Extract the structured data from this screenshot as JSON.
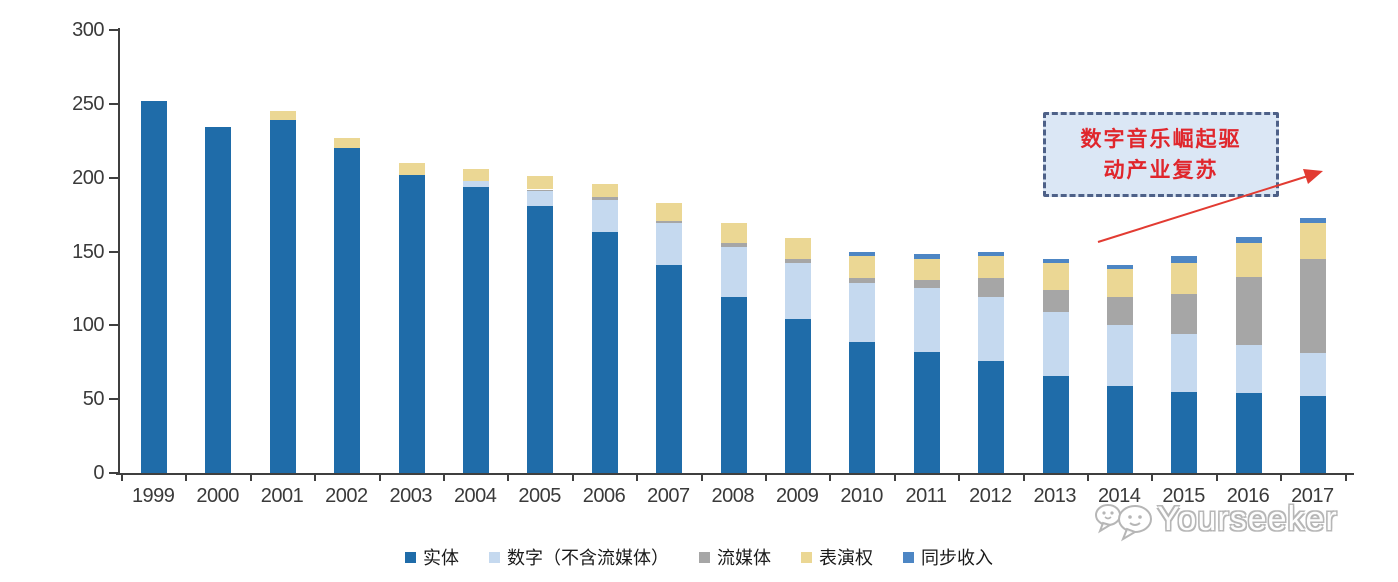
{
  "chart_data": {
    "type": "bar",
    "stacked": true,
    "title": "",
    "categories": [
      "1999",
      "2000",
      "2001",
      "2002",
      "2003",
      "2004",
      "2005",
      "2006",
      "2007",
      "2008",
      "2009",
      "2010",
      "2011",
      "2012",
      "2013",
      "2014",
      "2015",
      "2016",
      "2017"
    ],
    "series": [
      {
        "name": "实体",
        "color": "#1F6CA9",
        "values": [
          252,
          234,
          239,
          220,
          202,
          194,
          181,
          163,
          141,
          119,
          104,
          89,
          82,
          76,
          66,
          59,
          55,
          54,
          52
        ]
      },
      {
        "name": "数字（不含流媒体）",
        "color": "#C5D9EF",
        "values": [
          0,
          0,
          0,
          0,
          0,
          4,
          10,
          22,
          28,
          34,
          38,
          40,
          43,
          43,
          43,
          41,
          39,
          33,
          29
        ]
      },
      {
        "name": "流媒体",
        "color": "#A6A6A6",
        "values": [
          0,
          0,
          0,
          0,
          0,
          0,
          1,
          2,
          2,
          3,
          3,
          3,
          6,
          13,
          15,
          19,
          27,
          46,
          64
        ]
      },
      {
        "name": "表演权",
        "color": "#EBD794",
        "values": [
          0,
          0,
          6,
          7,
          8,
          8,
          9,
          9,
          12,
          13,
          14,
          15,
          14,
          15,
          18,
          19,
          21,
          23,
          24
        ]
      },
      {
        "name": "同步收入",
        "color": "#4D86C4",
        "values": [
          0,
          0,
          0,
          0,
          0,
          0,
          0,
          0,
          0,
          0,
          0,
          3,
          3,
          3,
          3,
          3,
          5,
          4,
          4
        ]
      }
    ],
    "ylim": [
      0,
      300
    ],
    "yticks": [
      0,
      50,
      100,
      150,
      200,
      250,
      300
    ],
    "grid": false,
    "legend_position": "bottom"
  },
  "annotation": {
    "text": "数字音乐崛起驱动产业复苏",
    "lines": [
      "数字音乐崛起驱",
      "动产业复苏"
    ],
    "box_fill": "#DBE7F5",
    "box_border": "#4E6188",
    "text_color": "#E0262C",
    "arrow_color": "#E23B32"
  },
  "watermark": {
    "text": "Yourseeker"
  },
  "colors": {
    "axis": "#3F3F3F",
    "tick_label": "#3A3A3A"
  }
}
